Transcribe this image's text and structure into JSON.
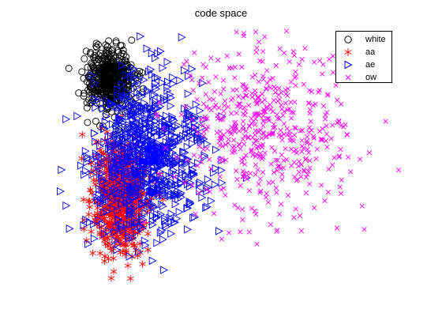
{
  "chart_data": {
    "type": "scatter",
    "title": "code space",
    "xlabel": "",
    "ylabel": "",
    "axes_visible": false,
    "grid": false,
    "legend_position": "top-right",
    "series": [
      {
        "name": "white",
        "marker": "circle",
        "color": "#000000",
        "approx_points": 520,
        "center": [
          0.155,
          0.8
        ],
        "spread": [
          0.035,
          0.055
        ]
      },
      {
        "name": "aa",
        "marker": "asterisk",
        "color": "#ff0000",
        "approx_points": 680,
        "center": [
          0.185,
          0.37
        ],
        "spread": [
          0.04,
          0.1
        ]
      },
      {
        "name": "ae",
        "marker": "triangle-right",
        "color": "#0000ff",
        "approx_points": 900,
        "center": [
          0.26,
          0.52
        ],
        "spread": [
          0.085,
          0.13
        ]
      },
      {
        "name": "ow",
        "marker": "x",
        "color": "#ff00ff",
        "approx_points": 520,
        "center": [
          0.62,
          0.62
        ],
        "spread": [
          0.13,
          0.15
        ]
      }
    ]
  }
}
